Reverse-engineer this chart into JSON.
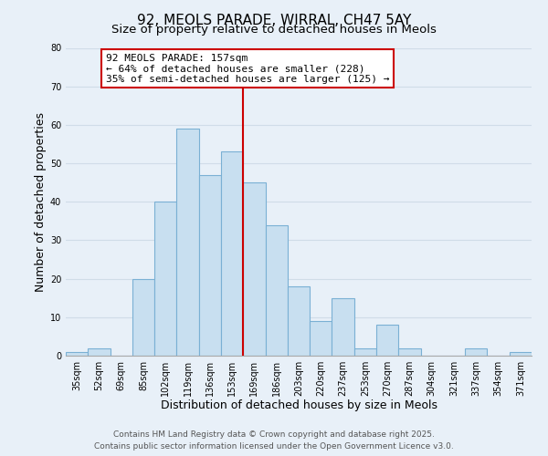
{
  "title": "92, MEOLS PARADE, WIRRAL, CH47 5AY",
  "subtitle": "Size of property relative to detached houses in Meols",
  "xlabel": "Distribution of detached houses by size in Meols",
  "ylabel": "Number of detached properties",
  "bar_color": "#c8dff0",
  "bar_edge_color": "#7ab0d4",
  "categories": [
    "35sqm",
    "52sqm",
    "69sqm",
    "85sqm",
    "102sqm",
    "119sqm",
    "136sqm",
    "153sqm",
    "169sqm",
    "186sqm",
    "203sqm",
    "220sqm",
    "237sqm",
    "253sqm",
    "270sqm",
    "287sqm",
    "304sqm",
    "321sqm",
    "337sqm",
    "354sqm",
    "371sqm"
  ],
  "values": [
    1,
    2,
    0,
    20,
    40,
    59,
    47,
    53,
    45,
    34,
    18,
    9,
    15,
    2,
    8,
    2,
    0,
    0,
    2,
    0,
    1
  ],
  "ylim": [
    0,
    80
  ],
  "yticks": [
    0,
    10,
    20,
    30,
    40,
    50,
    60,
    70,
    80
  ],
  "vline_pos": 7.5,
  "vline_color": "#cc0000",
  "annotation_text": "92 MEOLS PARADE: 157sqm\n← 64% of detached houses are smaller (228)\n35% of semi-detached houses are larger (125) →",
  "annotation_box_color": "#ffffff",
  "annotation_box_edge": "#cc0000",
  "footer_line1": "Contains HM Land Registry data © Crown copyright and database right 2025.",
  "footer_line2": "Contains public sector information licensed under the Open Government Licence v3.0.",
  "background_color": "#e8f0f8",
  "grid_color": "#d0dce8",
  "title_fontsize": 11,
  "subtitle_fontsize": 9.5,
  "tick_fontsize": 7,
  "axis_label_fontsize": 9,
  "footer_fontsize": 6.5,
  "annotation_fontsize": 8
}
